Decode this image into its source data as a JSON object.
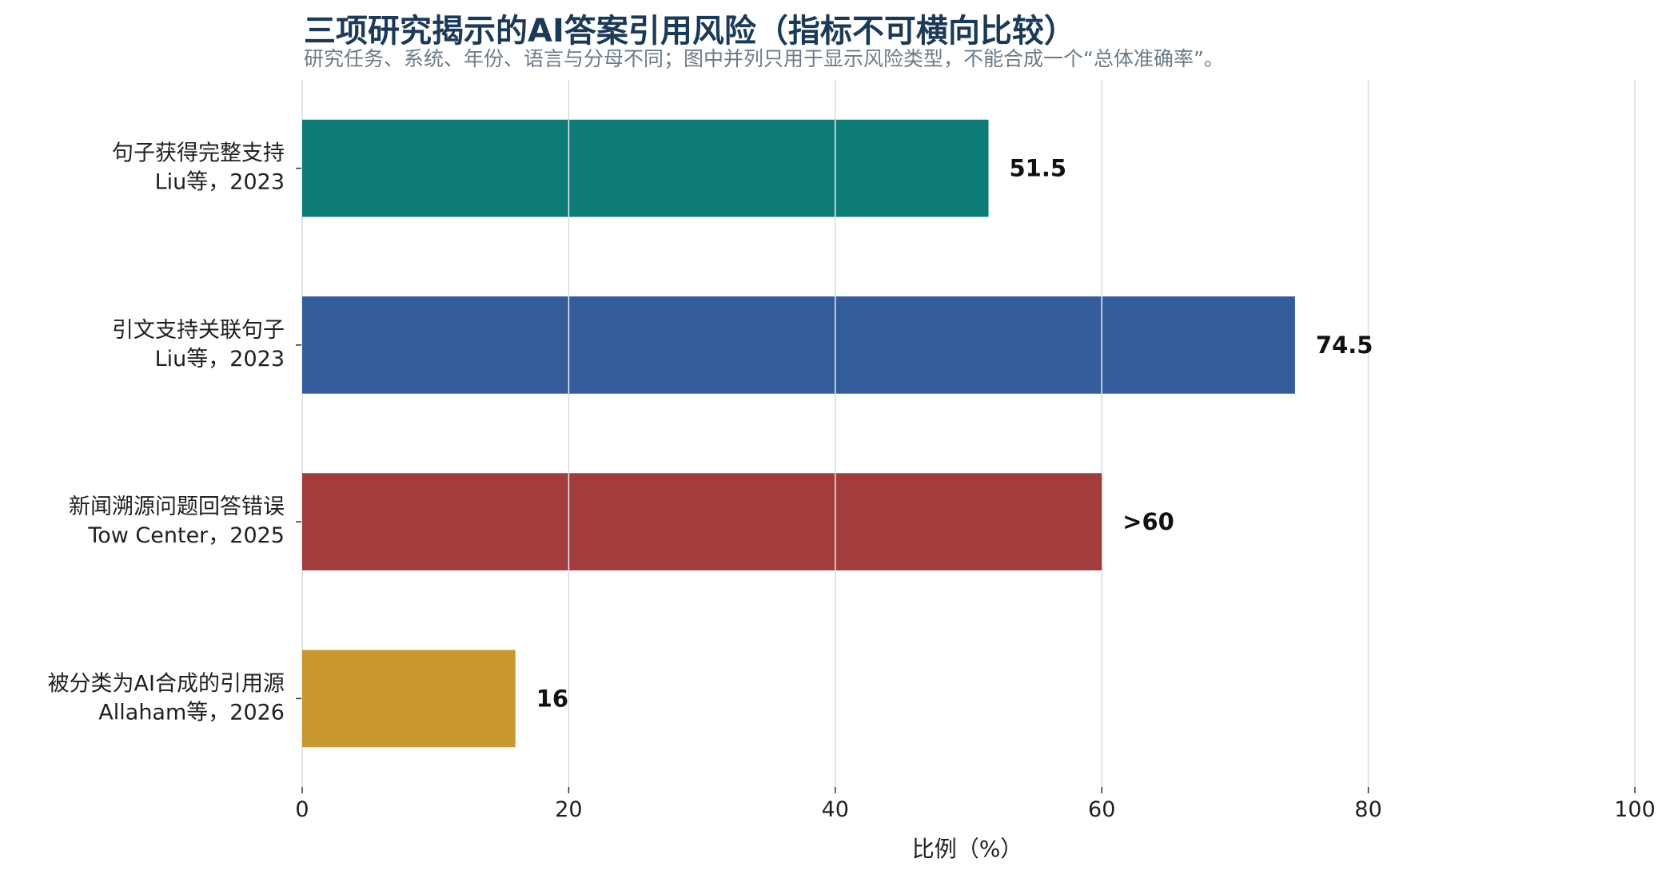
{
  "chart_data": {
    "type": "bar",
    "orientation": "horizontal",
    "title": "三项研究揭示的AI答案引用风险（指标不可横向比较）",
    "subtitle": "研究任务、系统、年份、语言与分母不同；图中并列只用于显示风险类型，不能合成一个“总体准确率”。",
    "categories": [
      [
        "句子获得完整支持",
        "Liu等，2023"
      ],
      [
        "引文支持关联句子",
        "Liu等，2023"
      ],
      [
        "新闻溯源问题回答错误",
        "Tow Center，2025"
      ],
      [
        "被分类为AI合成的引用源",
        "Allaham等，2026"
      ]
    ],
    "values": [
      51.5,
      74.5,
      60,
      16
    ],
    "value_labels": [
      "51.5",
      "74.5",
      ">60",
      "16"
    ],
    "colors": [
      "#0f7b76",
      "#345c9a",
      "#a23c3d",
      "#c9972f"
    ],
    "xlabel": "比例（%）",
    "ylabel": "",
    "xlim": [
      0,
      100
    ],
    "xticks": [
      0,
      20,
      40,
      60,
      80,
      100
    ],
    "grid": "vertical",
    "legend": "none"
  }
}
